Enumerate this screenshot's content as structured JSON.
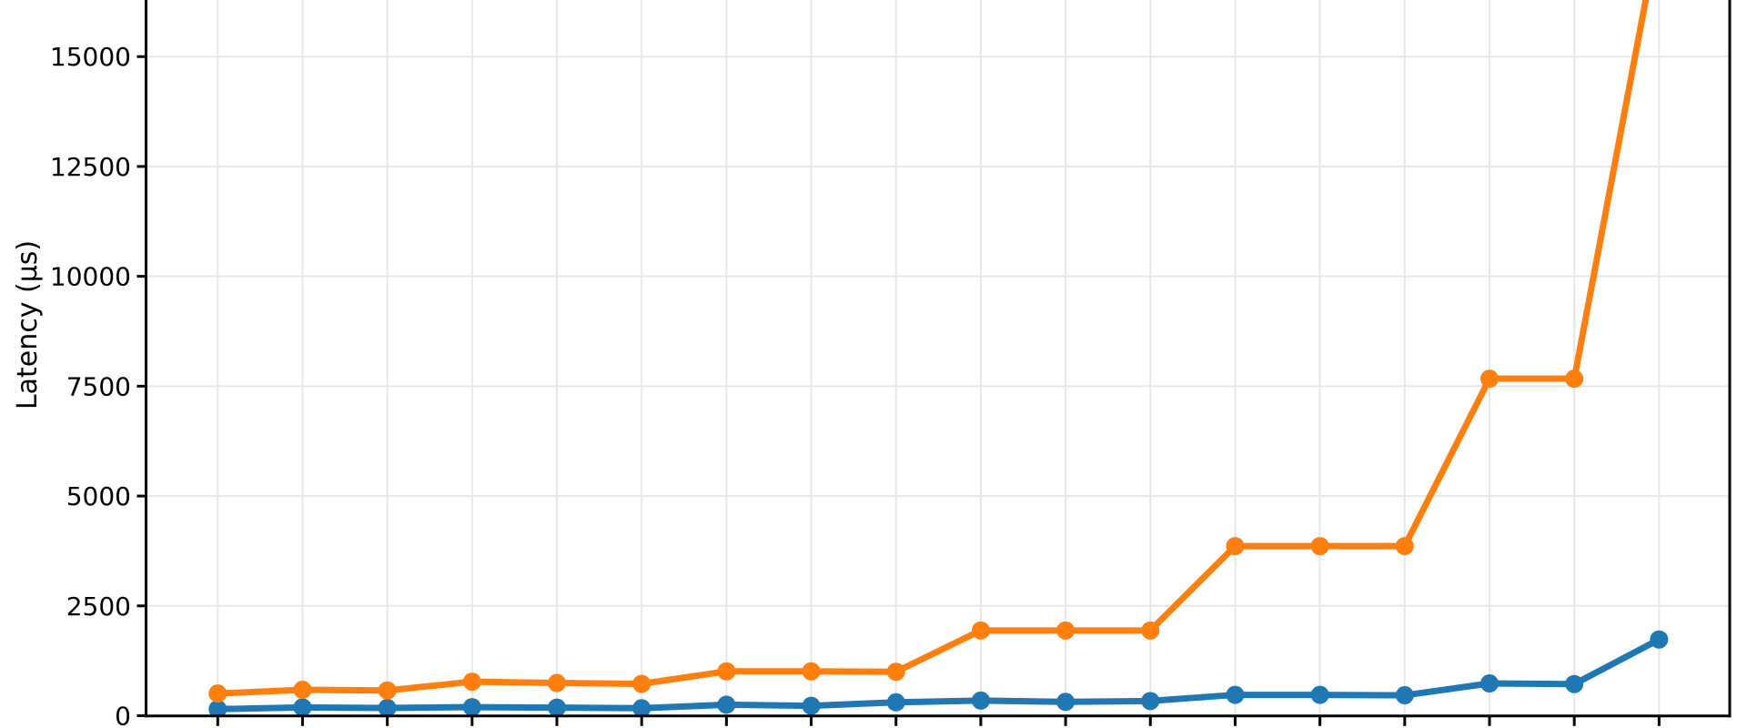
{
  "chart_data": {
    "type": "line",
    "title": "",
    "xlabel": "",
    "ylabel": "Latency (μs)",
    "yticks": [
      0,
      2500,
      5000,
      7500,
      10000,
      12500,
      15000
    ],
    "ytick_labels": [
      "0",
      "2500",
      "5000",
      "7500",
      "10000",
      "12500",
      "15000"
    ],
    "ylim_visible": [
      0,
      16300
    ],
    "grid": true,
    "legend_position": "not-visible-cropped",
    "x_axis_labels_visible": false,
    "num_points": 18,
    "series": [
      {
        "name": "blue",
        "color": "#1f77b4",
        "values": [
          150,
          190,
          175,
          195,
          185,
          170,
          250,
          225,
          305,
          345,
          315,
          335,
          475,
          475,
          465,
          735,
          720,
          1735
        ]
      },
      {
        "name": "orange",
        "color": "#ff7f0e",
        "values": [
          505,
          590,
          575,
          775,
          745,
          725,
          1010,
          1010,
          1000,
          1940,
          1940,
          1940,
          3860,
          3860,
          3860,
          7670,
          7670,
          17900
        ]
      }
    ],
    "colors": {
      "axis": "#000000",
      "grid": "#e7e7e7",
      "background": "#ffffff"
    }
  }
}
